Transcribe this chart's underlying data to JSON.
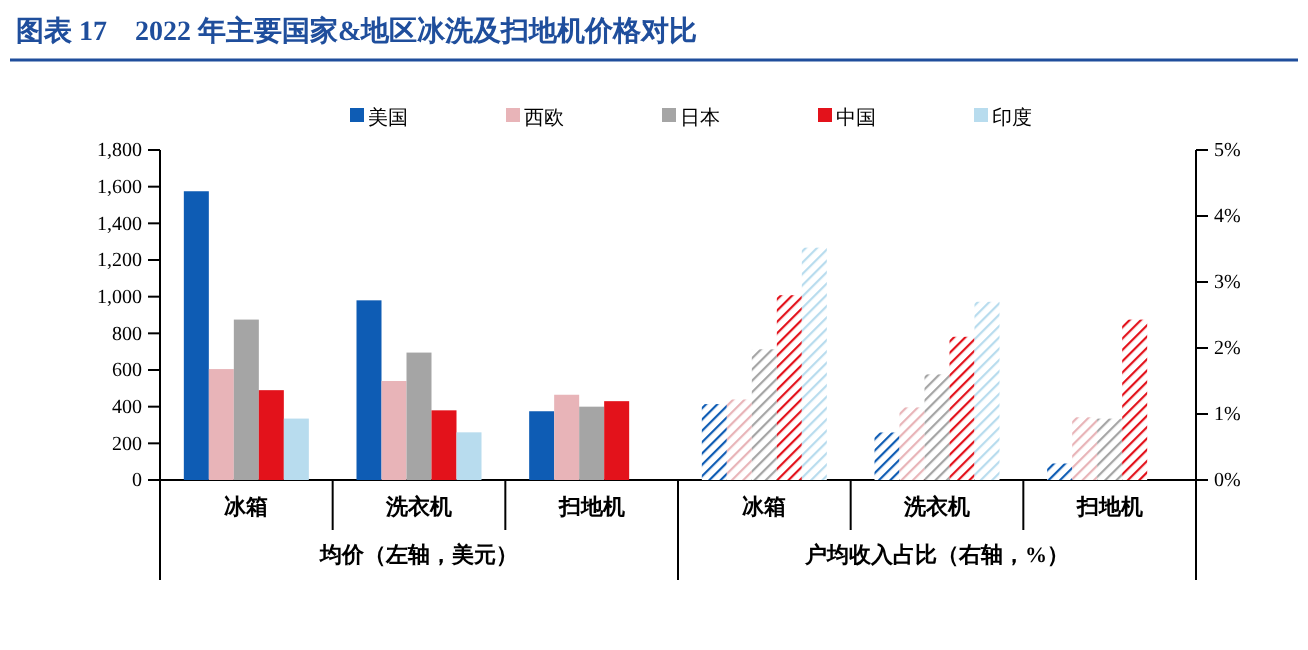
{
  "chart_data": {
    "type": "bar",
    "title": "图表 17　2022 年主要国家&地区冰洗及扫地机价格对比",
    "categories": [
      "冰箱",
      "洗衣机",
      "扫地机",
      "冰箱",
      "洗衣机",
      "扫地机"
    ],
    "series": [
      {
        "name": "美国",
        "color": "#0e5cb4",
        "values": [
          1575,
          980,
          375,
          null,
          null,
          null
        ]
      },
      {
        "name": "西欧",
        "color": "#e8b4b8",
        "values": [
          605,
          540,
          465,
          null,
          null,
          null
        ]
      },
      {
        "name": "日本",
        "color": "#a5a5a5",
        "values": [
          875,
          695,
          400,
          null,
          null,
          null
        ]
      },
      {
        "name": "中国",
        "color": "#e3121b",
        "values": [
          490,
          380,
          430,
          null,
          null,
          null
        ]
      },
      {
        "name": "印度",
        "color": "#b8dcee",
        "values": [
          335,
          260,
          null,
          null,
          null,
          null
        ]
      },
      {
        "color": "#0e5cb4",
        "axis": "y2",
        "values": [
          null,
          null,
          null,
          1.15,
          0.72,
          0.25
        ]
      },
      {
        "color": "#e8b4b8",
        "axis": "y2",
        "values": [
          null,
          null,
          null,
          1.22,
          1.1,
          0.95
        ]
      },
      {
        "color": "#a5a5a5",
        "axis": "y2",
        "values": [
          null,
          null,
          null,
          1.98,
          1.6,
          0.93
        ]
      },
      {
        "color": "#e3121b",
        "axis": "y2",
        "values": [
          null,
          null,
          null,
          2.8,
          2.17,
          2.43
        ]
      },
      {
        "color": "#b8dcee",
        "axis": "y2",
        "values": [
          null,
          null,
          null,
          3.52,
          2.7,
          null
        ]
      }
    ],
    "ylim": [
      0,
      1800
    ],
    "yticks": [
      0,
      200,
      400,
      600,
      800,
      {
        "value": 1000,
        "label": "1,000"
      },
      {
        "value": 1200,
        "label": "1,200"
      },
      {
        "value": 1400,
        "label": "1,400"
      },
      {
        "value": 1600,
        "label": "1,600"
      },
      {
        "value": 1800,
        "label": "1,800"
      }
    ],
    "y2lim": [
      0,
      5
    ],
    "y2ticks": [
      {
        "value": 0,
        "label": "0%"
      },
      {
        "value": 1,
        "label": "1%"
      },
      {
        "value": 2,
        "label": "2%"
      },
      {
        "value": 3,
        "label": "3%"
      },
      {
        "value": 4,
        "label": "4%"
      },
      {
        "value": 5,
        "label": "5%"
      }
    ],
    "annotations": [
      "均价（左轴，美元）",
      "户均收入占比（右轴，%）"
    ],
    "legend": "top",
    "grid": false
  }
}
